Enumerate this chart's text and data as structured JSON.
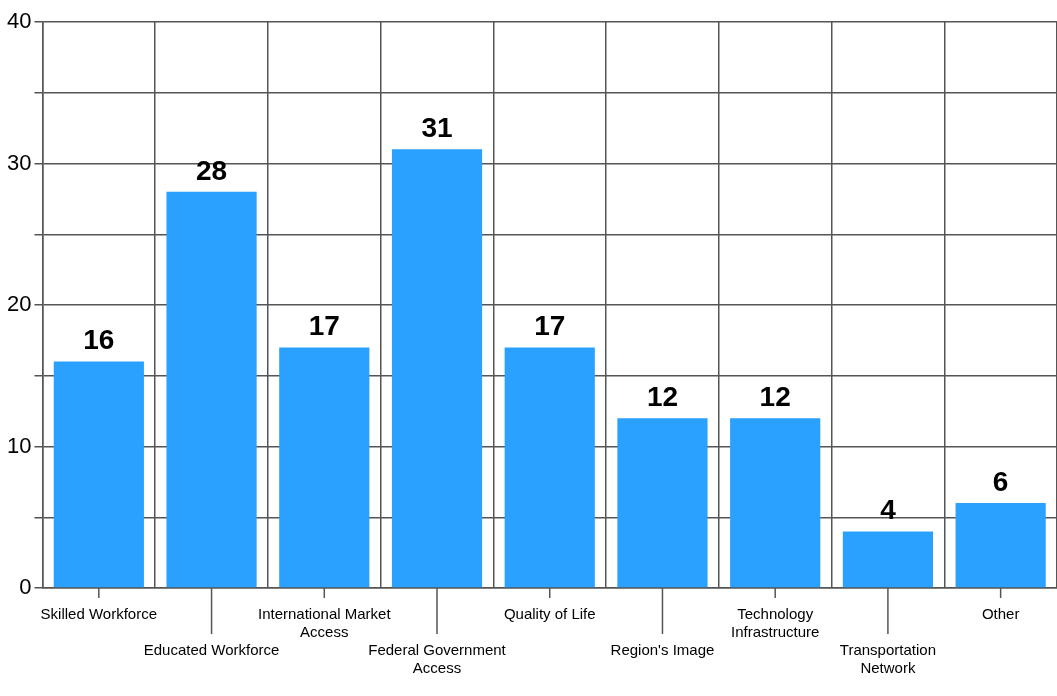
{
  "chart_data": {
    "type": "bar",
    "categories": [
      "Skilled Workforce",
      "Educated Workforce",
      "International Market Access",
      "Federal Government Access",
      "Quality of Life",
      "Region's Image",
      "Technology Infrastructure",
      "Transportation Network",
      "Other"
    ],
    "values": [
      16,
      28,
      17,
      31,
      17,
      12,
      12,
      4,
      6
    ],
    "color": "#2aa0ff",
    "ylim": [
      0,
      40
    ],
    "yticks": [
      0,
      {
        "value": 5,
        "label": null
      },
      10,
      {
        "value": 15,
        "label": null
      },
      20,
      {
        "value": 25,
        "label": null
      },
      30,
      {
        "value": 35,
        "label": null
      },
      40
    ],
    "grid": true,
    "data_labels": true,
    "legend": false
  }
}
